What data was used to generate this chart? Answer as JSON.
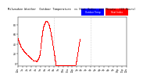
{
  "background_color": "#ffffff",
  "plot_bg_color": "#ffffff",
  "dot_color_temp": "#ff0000",
  "dot_color_hi": "#ff0000",
  "dot_size": 0.5,
  "ylim": [
    -5,
    95
  ],
  "yticks": [
    0,
    20,
    40,
    60,
    80
  ],
  "ytick_labels": [
    "0",
    "20",
    "40",
    "60",
    "80"
  ],
  "vline_positions": [
    480,
    960
  ],
  "vline_color": "#aaaaaa",
  "vline_style": ":",
  "tick_fontsize": 2.2,
  "legend_label_temp": "Outdoor Temp",
  "legend_label_hi": "Heat Index",
  "legend_color_temp": "#0000ff",
  "legend_color_hi": "#ff0000",
  "title_left": "Milwaukee Weather  Outdoor Temperature",
  "title_fontsize": 2.8,
  "xtick_labels_all": [
    "12a",
    "1a",
    "2a",
    "3a",
    "4a",
    "5a",
    "6a",
    "7a",
    "8a",
    "9a",
    "10a",
    "11a",
    "12p",
    "1p",
    "2p",
    "3p",
    "4p",
    "5p",
    "6p",
    "7p",
    "8p",
    "9p",
    "10p",
    "11p",
    "12a"
  ],
  "temp_data": [
    52,
    51,
    51,
    50,
    50,
    49,
    49,
    48,
    48,
    47,
    47,
    46,
    46,
    45,
    45,
    44,
    44,
    43,
    43,
    43,
    42,
    42,
    41,
    41,
    40,
    40,
    39,
    39,
    39,
    38,
    38,
    37,
    37,
    37,
    36,
    36,
    36,
    35,
    35,
    35,
    35,
    34,
    34,
    34,
    34,
    33,
    33,
    33,
    33,
    32,
    32,
    32,
    32,
    31,
    31,
    31,
    31,
    30,
    30,
    30,
    30,
    30,
    29,
    29,
    29,
    29,
    28,
    28,
    28,
    28,
    28,
    27,
    27,
    27,
    27,
    27,
    26,
    26,
    26,
    26,
    25,
    25,
    25,
    25,
    25,
    24,
    24,
    24,
    24,
    24,
    23,
    23,
    23,
    23,
    23,
    22,
    22,
    22,
    22,
    22,
    22,
    22,
    22,
    21,
    21,
    21,
    21,
    21,
    21,
    20,
    20,
    20,
    20,
    20,
    20,
    19,
    19,
    19,
    19,
    19,
    19,
    18,
    18,
    18,
    18,
    18,
    18,
    17,
    17,
    17,
    17,
    17,
    17,
    17,
    16,
    16,
    16,
    16,
    16,
    16,
    15,
    15,
    15,
    15,
    15,
    15,
    15,
    14,
    14,
    14,
    14,
    14,
    14,
    14,
    13,
    13,
    13,
    13,
    13,
    13,
    13,
    12,
    12,
    12,
    12,
    12,
    12,
    12,
    12,
    11,
    11,
    11,
    11,
    11,
    11,
    11,
    11,
    10,
    10,
    10,
    10,
    10,
    10,
    10,
    10,
    9,
    9,
    9,
    9,
    9,
    9,
    9,
    9,
    9,
    8,
    8,
    8,
    8,
    8,
    8,
    8,
    8,
    8,
    7,
    7,
    7,
    7,
    7,
    7,
    7,
    7,
    7,
    7,
    7,
    7,
    7,
    7,
    7,
    7,
    6,
    6,
    6,
    6,
    6,
    6,
    6,
    6,
    6,
    6,
    6,
    6,
    6,
    6,
    6,
    6,
    6,
    5,
    5,
    5,
    5,
    5,
    5,
    5,
    5,
    5,
    5,
    5,
    5,
    6,
    6,
    6,
    6,
    6,
    7,
    7,
    7,
    7,
    7,
    7,
    8,
    8,
    8,
    8,
    8,
    9,
    9,
    9,
    9,
    9,
    10,
    10,
    10,
    10,
    11,
    11,
    11,
    12,
    12,
    12,
    13,
    13,
    14,
    14,
    15,
    15,
    16,
    17,
    17,
    18,
    19,
    20,
    21,
    22,
    23,
    24,
    25,
    27,
    28,
    29,
    31,
    32,
    34,
    35,
    37,
    38,
    40,
    41,
    43,
    44,
    46,
    47,
    48,
    50,
    51,
    53,
    54,
    55,
    57,
    58,
    59,
    61,
    62,
    63,
    64,
    65,
    66,
    67,
    68,
    69,
    70,
    71,
    72,
    73,
    73,
    74,
    74,
    75,
    75,
    76,
    76,
    77,
    77,
    78,
    78,
    79,
    79,
    80,
    80,
    81,
    81,
    82,
    82,
    83,
    83,
    83,
    84,
    84,
    84,
    85,
    85,
    85,
    86,
    86,
    86,
    87,
    87,
    87,
    87,
    87,
    87,
    87,
    87,
    87,
    87,
    87,
    87,
    87,
    87,
    87,
    87,
    87,
    87,
    87,
    87,
    87,
    86,
    86,
    86,
    86,
    86,
    86,
    86,
    85,
    85,
    85,
    85,
    85,
    84,
    84,
    84,
    84,
    83,
    83,
    83,
    82,
    82,
    82,
    81,
    81,
    80,
    80,
    79,
    79,
    78,
    78,
    77,
    77,
    76,
    75,
    75,
    74,
    74,
    73,
    72,
    72,
    71,
    70,
    70,
    69,
    68,
    67,
    67,
    66,
    65,
    64,
    63,
    63,
    62,
    61,
    60,
    59,
    58,
    58,
    57,
    56,
    55,
    54,
    53,
    52,
    51,
    50,
    49,
    48,
    47,
    46,
    45,
    44,
    43,
    42,
    41,
    40,
    39,
    38,
    37,
    36,
    35,
    34,
    33,
    32,
    31,
    30,
    29,
    28,
    27,
    26,
    25,
    24,
    23,
    22,
    21,
    20,
    19,
    18,
    17,
    16,
    15,
    14,
    13,
    12,
    11,
    10,
    9,
    8,
    7,
    6,
    5,
    4,
    3,
    2,
    1,
    0,
    -1,
    -2,
    -3,
    -4,
    -4,
    -4,
    -4,
    -4,
    -4,
    -4,
    -4,
    -4,
    -4,
    -4,
    -4,
    -4,
    -4,
    -4,
    -4,
    -4,
    -4,
    -4,
    -4,
    -4,
    -4,
    -4,
    -4,
    -4,
    -4,
    -4,
    -4,
    -4,
    -4,
    -4,
    -4,
    -4,
    -4,
    -4,
    -4,
    -4,
    -4,
    -4,
    -4,
    -4,
    -4,
    -4,
    -4,
    -4,
    -4,
    -4,
    -4,
    -4,
    -4,
    -4,
    -4,
    -4,
    -4,
    -4,
    -4,
    -4,
    -4,
    -4,
    -4,
    -4,
    -4,
    -4,
    -4,
    -4,
    -4,
    -4,
    -4,
    -4,
    -4,
    -4,
    -4,
    -4,
    -4,
    -4,
    -4,
    -4,
    -4,
    -4,
    -4,
    -4,
    -4,
    -4,
    -4,
    -4,
    -4,
    -4,
    -4,
    -4,
    -4,
    -4,
    -4,
    -4,
    -4,
    -4,
    -4,
    -4,
    -4,
    -4,
    -4,
    -4,
    -4,
    -4,
    -4,
    -4,
    -4,
    -4,
    -4,
    -4,
    -4,
    -4,
    -4,
    -4,
    -4,
    -4,
    -4,
    -4,
    -4,
    -4,
    -4,
    -4,
    -4,
    -4,
    -4,
    -4,
    -4,
    -4,
    -4,
    -4,
    -4,
    -4,
    -4,
    -4,
    -4,
    -4,
    -4,
    -4,
    -4,
    -4,
    -4,
    -4,
    -4,
    -4,
    -4,
    -4,
    -4,
    -4,
    -4,
    -4,
    -4,
    -4,
    -4,
    -4,
    -4,
    -4,
    -4,
    -4,
    -4,
    -4,
    -4,
    -4,
    -4,
    -4,
    -4,
    -4,
    -4,
    -4,
    -4,
    -4,
    -4,
    -4,
    -4,
    -4,
    -4,
    -4,
    -4,
    -4,
    -4,
    -4,
    -4,
    -4,
    -4,
    -4,
    -4,
    -4,
    -4,
    -4,
    -4,
    -4,
    -4,
    -4,
    -4,
    -4,
    -4,
    -4,
    -4,
    -4,
    -4,
    -4,
    -4,
    -4,
    -4,
    -4,
    -4,
    -4,
    -4,
    -4,
    -4,
    -4,
    -4,
    -4,
    -4,
    -4,
    -4,
    -4,
    -4,
    -4,
    -4,
    -4,
    -4,
    -4,
    -4,
    -4,
    -4,
    -4,
    -4,
    -4,
    -4,
    -4,
    -4,
    -4,
    -4,
    -4,
    -4,
    -4,
    -4,
    -4,
    -4,
    -4,
    -4,
    -4,
    -4,
    -4,
    -4,
    -4,
    -4,
    -4,
    -4,
    -4,
    -4,
    -4,
    -4,
    -4,
    -4,
    -4,
    -4,
    -3,
    -3,
    -2,
    -2,
    -1,
    -1,
    0,
    0,
    1,
    2,
    2,
    3,
    4,
    5,
    6,
    7,
    8,
    9,
    10,
    11,
    12,
    13,
    14,
    15,
    16,
    17,
    18,
    19,
    20,
    21,
    22,
    23,
    24,
    25,
    26,
    27,
    28,
    29,
    30,
    31,
    32,
    33,
    34,
    35,
    36,
    37,
    38,
    39,
    40,
    41,
    42,
    43,
    44,
    45,
    46,
    47,
    48,
    49,
    50,
    51
  ]
}
